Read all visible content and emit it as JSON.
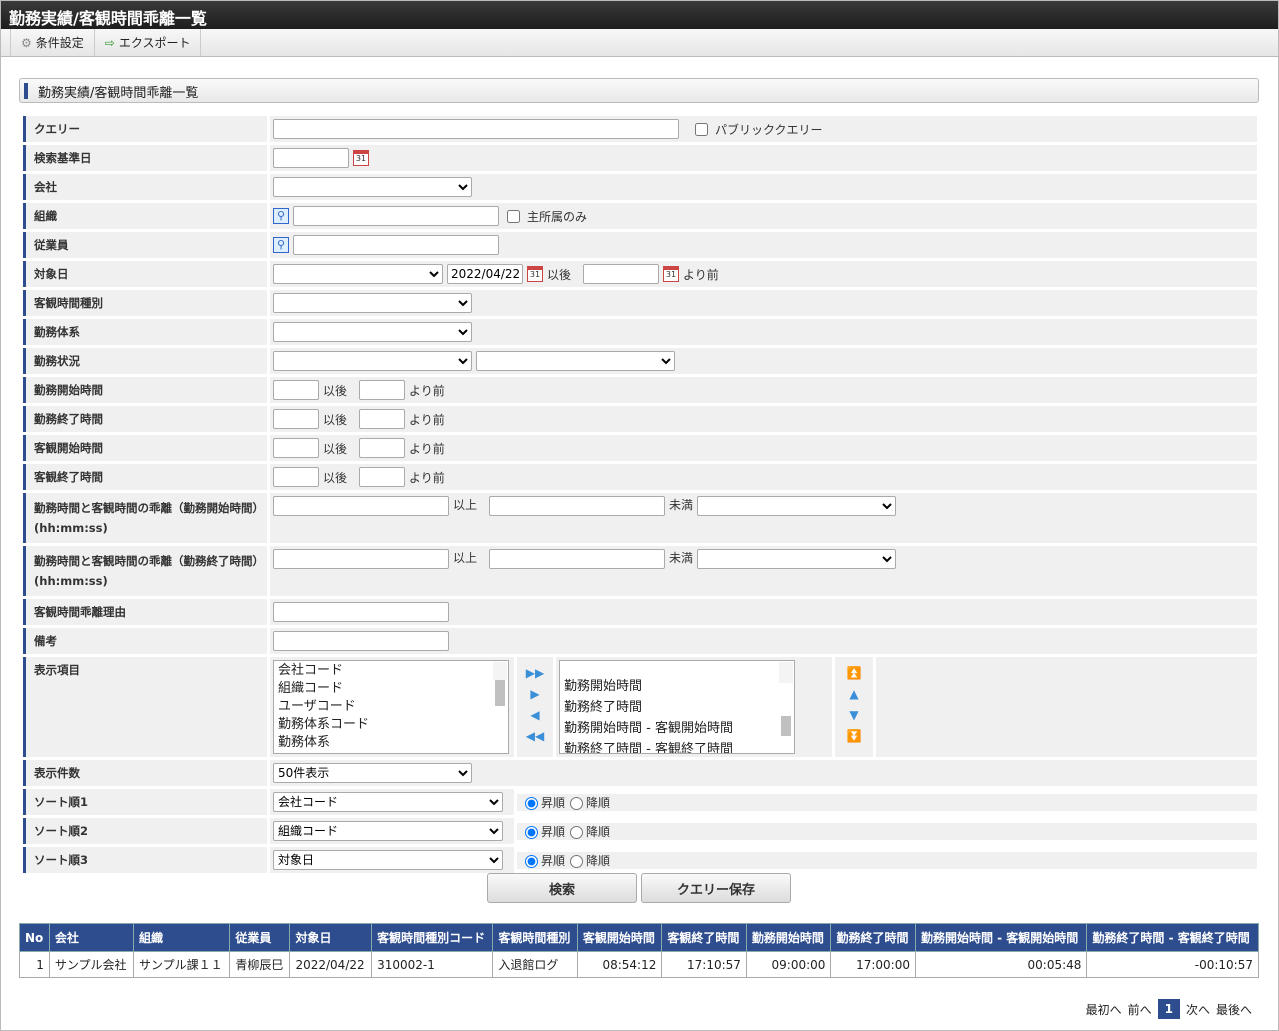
{
  "window": {
    "title": "勤務実績/客観時間乖離一覧"
  },
  "toolbar": {
    "settings": "条件設定",
    "export": "エクスポート"
  },
  "section": {
    "title": "勤務実績/客観時間乖離一覧"
  },
  "form": {
    "query": "クエリー",
    "public_query": "パブリッククエリー",
    "base_date": "検索基準日",
    "company": "会社",
    "org": "組織",
    "main_only": "主所属のみ",
    "employee": "従業員",
    "target_date": "対象日",
    "target_from": "2022/04/22",
    "after": "以後",
    "before": "より前",
    "obj_type": "客観時間種別",
    "work_system": "勤務体系",
    "work_status": "勤務状況",
    "work_start": "勤務開始時間",
    "work_end": "勤務終了時間",
    "obj_start": "客観開始時間",
    "obj_end": "客観終了時間",
    "dev_start": "勤務時間と客観時間の乖離（勤務開始時間）(hh:mm:ss)",
    "dev_end": "勤務時間と客観時間の乖離（勤務終了時間）(hh:mm:ss)",
    "gte": "以上",
    "lt": "未満",
    "reason": "客観時間乖離理由",
    "note": "備考",
    "display_items": "表示項目",
    "available": [
      "会社コード",
      "組織コード",
      "ユーザコード",
      "勤務体系コード",
      "勤務体系"
    ],
    "selected": [
      "勤務開始時間",
      "勤務終了時間",
      "勤務開始時間 - 客観開始時間",
      "勤務終了時間 - 客観終了時間"
    ],
    "count": "表示件数",
    "count_value": "50件表示",
    "sort1": "ソート順1",
    "sort1_value": "会社コード",
    "sort2": "ソート順2",
    "sort2_value": "組織コード",
    "sort3": "ソート順3",
    "sort3_value": "対象日",
    "asc": "昇順",
    "desc": "降順"
  },
  "buttons": {
    "search": "検索",
    "save_query": "クエリー保存"
  },
  "results": {
    "headers": [
      "No",
      "会社",
      "組織",
      "従業員",
      "対象日",
      "客観時間種別コード",
      "客観時間種別",
      "客観開始時間",
      "客観終了時間",
      "勤務開始時間",
      "勤務終了時間",
      "勤務開始時間 - 客観開始時間",
      "勤務終了時間 - 客観終了時間"
    ],
    "rows": [
      [
        "1",
        "サンプル会社",
        "サンプル課１１",
        "青柳辰巳",
        "2022/04/22",
        "310002-1",
        "入退館ログ",
        "08:54:12",
        "17:10:57",
        "09:00:00",
        "17:00:00",
        "00:05:48",
        "-00:10:57"
      ]
    ]
  },
  "pager": {
    "first": "最初へ",
    "prev": "前へ",
    "current": "1",
    "next": "次へ",
    "last": "最後へ"
  }
}
